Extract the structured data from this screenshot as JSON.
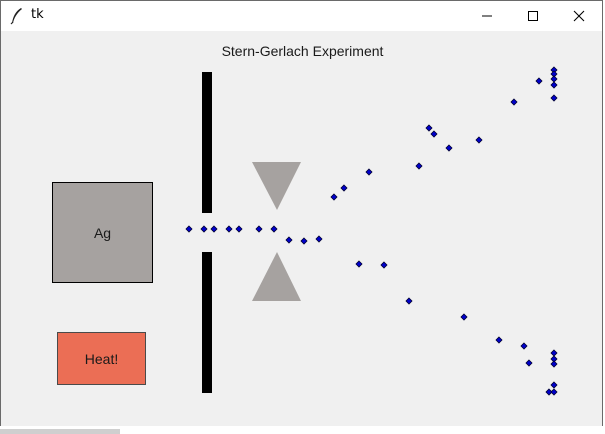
{
  "window": {
    "title": "tk",
    "icon": "feather-icon",
    "controls": [
      "minimize-icon",
      "maximize-icon",
      "close-icon"
    ]
  },
  "experiment": {
    "title": "Stern-Gerlach Experiment",
    "source_label": "Ag",
    "heat_button_label": "Heat!",
    "colors": {
      "source_fill": "#a6a2a0",
      "heat_button_fill": "#eb6e55",
      "magnet_fill": "#a6a2a0",
      "slit_fill": "#000000",
      "particle_fill": "#0000cc",
      "particle_outline": "#000033"
    }
  }
}
